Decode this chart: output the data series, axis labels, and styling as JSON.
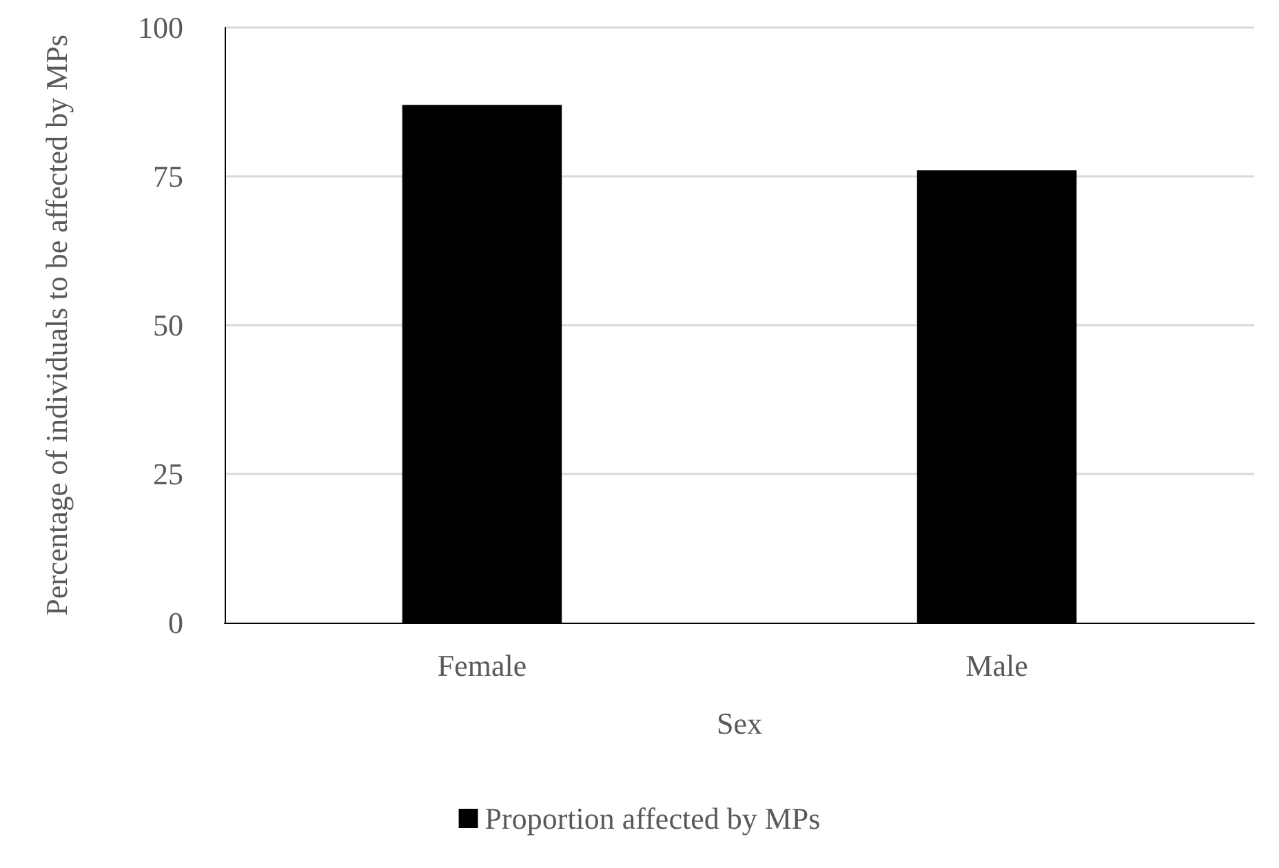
{
  "chart_data": {
    "type": "bar",
    "xlabel": "Sex",
    "ylabel": "Percentage of individuals to be affected by MPs",
    "categories": [
      "Female",
      "Male"
    ],
    "series": [
      {
        "name": "Proportion affected by MPs",
        "color": "#000000",
        "values": [
          87,
          76
        ]
      }
    ],
    "ylim": [
      0,
      100
    ],
    "yticks": [
      0,
      25,
      50,
      75,
      100
    ],
    "grid": "y",
    "legend": "bottom"
  }
}
